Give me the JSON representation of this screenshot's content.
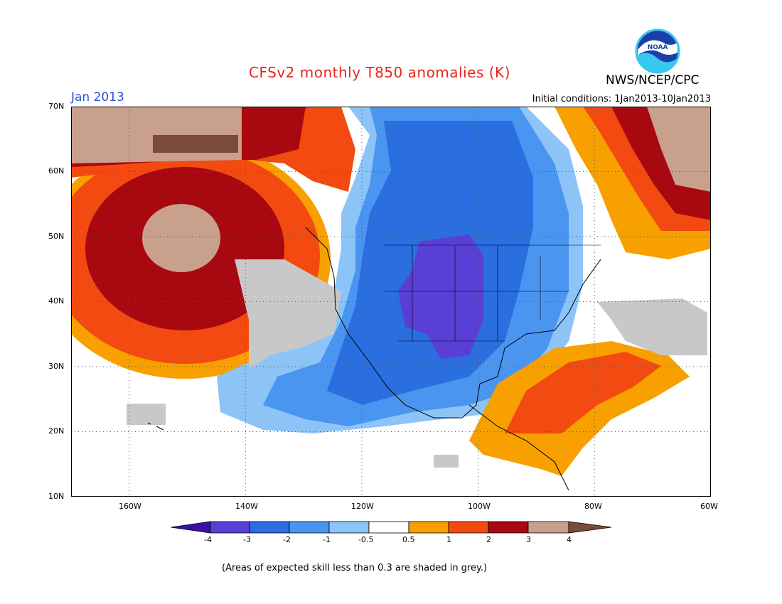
{
  "title": "CFSv2 monthly T850 anomalies (K)",
  "agency": "NWS/NCEP/CPC",
  "logo_text": "NOAA",
  "month": "Jan 2013",
  "initial_conditions": "Initial conditions: 1Jan2013-10Jan2013",
  "lat_labels": [
    "70N",
    "60N",
    "50N",
    "40N",
    "30N",
    "20N",
    "10N"
  ],
  "lon_labels": [
    "160W",
    "140W",
    "120W",
    "100W",
    "80W",
    "60W"
  ],
  "colorbar": {
    "tick_labels": [
      "-4",
      "-3",
      "-2",
      "-1",
      "-0.5",
      "0.5",
      "1",
      "2",
      "3",
      "4"
    ],
    "colors": [
      "#3a10a8",
      "#5a3fd6",
      "#2a6ee0",
      "#4a95f0",
      "#8cc4f8",
      "#ffffff",
      "#f7a000",
      "#f24a10",
      "#a80810",
      "#c8a08c",
      "#7a4a3a"
    ]
  },
  "grey_note": "(Areas of expected skill less than 0.3 are shaded in grey.)",
  "colors": {
    "title": "#e8241a",
    "month": "#2a4fd6",
    "skill_grey": "#c8c8c8"
  }
}
